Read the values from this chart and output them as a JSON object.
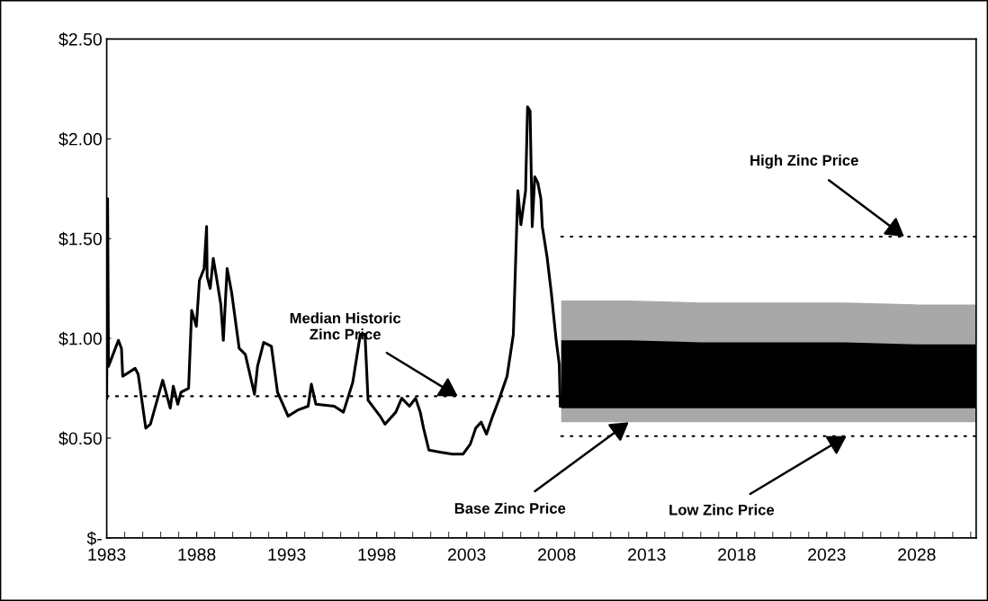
{
  "chart_data": {
    "type": "line",
    "xlim": [
      1983,
      2031.3
    ],
    "xticks": [
      1983,
      1988,
      1993,
      1998,
      2003,
      2008,
      2013,
      2018,
      2023,
      2028
    ],
    "ylim": [
      0,
      2.5
    ],
    "yticks": [
      {
        "value": 0,
        "label": "$-"
      },
      {
        "value": 0.5,
        "label": "$0.50"
      },
      {
        "value": 1.0,
        "label": "$1.00"
      },
      {
        "value": 1.5,
        "label": "$1.50"
      },
      {
        "value": 2.0,
        "label": "$2.00"
      },
      {
        "value": 2.5,
        "label": "$2.50"
      }
    ],
    "grid": false,
    "series": [
      {
        "color": "#a8a8a8",
        "x": [
          2008.25,
          2012,
          2016,
          2020,
          2024,
          2028,
          2031.3
        ],
        "values": [
          null,
          null,
          null,
          null,
          null,
          null,
          null
        ],
        "lower": [
          0.58,
          0.58,
          0.58,
          0.58,
          0.58,
          0.58,
          0.58
        ],
        "upper": [
          1.19,
          1.19,
          1.18,
          1.18,
          1.18,
          1.17,
          1.17
        ]
      },
      {
        "color": "#000000",
        "x": [
          2008.25,
          2012,
          2016,
          2020,
          2024,
          2028,
          2031.3
        ],
        "values": [
          null,
          null,
          null,
          null,
          null,
          null,
          null
        ],
        "lower": [
          0.65,
          0.65,
          0.65,
          0.65,
          0.65,
          0.65,
          0.65
        ],
        "upper": [
          0.99,
          0.99,
          0.98,
          0.98,
          0.98,
          0.97,
          0.97
        ]
      },
      {
        "color": "#000000",
        "line_style": "solid",
        "x": [
          1983.0,
          1983.05,
          1983.1,
          1983.65,
          1983.82,
          1983.89,
          1984.58,
          1984.75,
          1985.17,
          1985.43,
          1986.11,
          1986.53,
          1986.7,
          1986.95,
          1987.13,
          1987.55,
          1987.72,
          1987.98,
          1988.15,
          1988.41,
          1988.55,
          1988.58,
          1988.75,
          1988.92,
          1989.09,
          1989.34,
          1989.48,
          1989.69,
          1989.94,
          1990.36,
          1990.7,
          1991.21,
          1991.38,
          1991.72,
          1992.15,
          1992.49,
          1993.08,
          1993.6,
          1994.19,
          1994.37,
          1994.62,
          1995.64,
          1996.15,
          1996.67,
          1997.09,
          1997.35,
          1997.52,
          1998.19,
          1998.46,
          1999.06,
          1999.39,
          1999.82,
          2000.16,
          2000.42,
          2000.6,
          2000.9,
          2001.5,
          2002.2,
          2002.8,
          2003.2,
          2003.5,
          2003.8,
          2004.1,
          2004.4,
          2004.82,
          2005.24,
          2005.59,
          2005.84,
          2006.01,
          2006.27,
          2006.38,
          2006.52,
          2006.64,
          2006.78,
          2006.95,
          2007.12,
          2007.2,
          2007.46,
          2007.71,
          2007.97,
          2008.14,
          2008.2
        ],
        "values": [
          0.7,
          1.7,
          0.86,
          0.99,
          0.95,
          0.81,
          0.85,
          0.82,
          0.55,
          0.57,
          0.79,
          0.65,
          0.76,
          0.67,
          0.73,
          0.75,
          1.14,
          1.06,
          1.29,
          1.35,
          1.56,
          1.31,
          1.25,
          1.4,
          1.31,
          1.17,
          0.99,
          1.35,
          1.23,
          0.95,
          0.92,
          0.72,
          0.86,
          0.98,
          0.96,
          0.73,
          0.61,
          0.64,
          0.66,
          0.77,
          0.67,
          0.66,
          0.63,
          0.78,
          1.02,
          1.02,
          0.69,
          0.61,
          0.57,
          0.63,
          0.7,
          0.66,
          0.7,
          0.63,
          0.55,
          0.44,
          0.43,
          0.42,
          0.42,
          0.47,
          0.55,
          0.58,
          0.52,
          0.6,
          0.7,
          0.81,
          1.02,
          1.74,
          1.57,
          1.74,
          2.16,
          2.14,
          1.56,
          1.81,
          1.78,
          1.7,
          1.56,
          1.41,
          1.22,
          0.99,
          0.87,
          0.66
        ]
      },
      {
        "color": "#000000",
        "line_style": "dotted",
        "x": [
          1983,
          2008.2
        ],
        "values": [
          0.71,
          0.71
        ]
      },
      {
        "color": "#000000",
        "line_style": "dotted",
        "x": [
          2008.25,
          2031.3
        ],
        "values": [
          1.51,
          1.51
        ]
      },
      {
        "color": "#000000",
        "line_style": "dotted",
        "x": [
          2008.25,
          2031.3
        ],
        "values": [
          0.51,
          0.51
        ]
      }
    ],
    "annotations": [
      {
        "text": "Median Historic\nZinc Price",
        "x": 2002.5,
        "y": 0.71
      },
      {
        "text": "High Zinc Price",
        "x": 2027.3,
        "y": 1.51
      },
      {
        "text": "Base Zinc Price",
        "x": 2012,
        "y": 0.58
      },
      {
        "text": "Low Zinc Price",
        "x": 2024.1,
        "y": 0.51
      }
    ]
  }
}
